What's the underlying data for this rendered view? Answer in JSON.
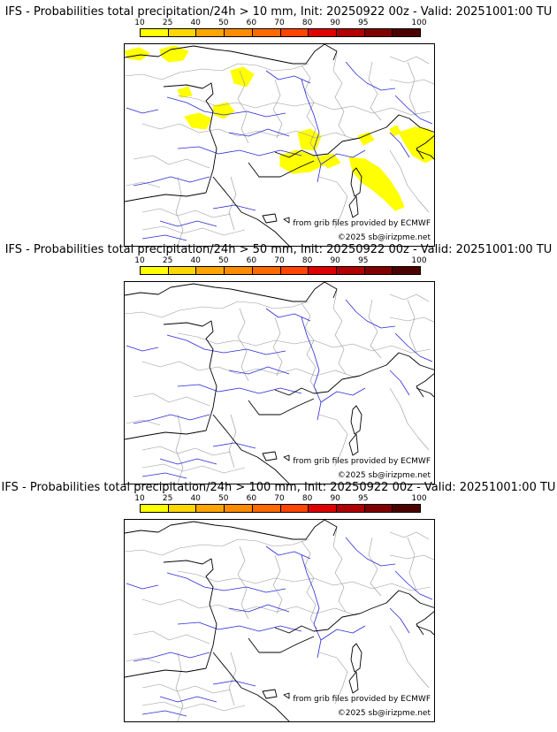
{
  "colors": {
    "scale": [
      "#ffff00",
      "#ffd700",
      "#ffa500",
      "#ff8c00",
      "#ff6a00",
      "#ff4500",
      "#e00000",
      "#b00000",
      "#800000",
      "#4d0000"
    ],
    "precip_fill": "#ffff00",
    "coast": "#000000",
    "border": "#999999",
    "river": "#2b2bd6"
  },
  "legend": {
    "levels": [
      "10",
      "25",
      "40",
      "50",
      "60",
      "70",
      "80",
      "90",
      "95",
      "100"
    ]
  },
  "panels": [
    {
      "title": "IFS - Probabilities total precipitation/24h > 10 mm, Init: 20250922 00z - Valid: 20251001:00 TU",
      "credit_source": "from grib files provided by ECMWF",
      "credit_copyright": "©2025 sb@irizpme.net",
      "has_precip": true
    },
    {
      "title": "IFS - Probabilities total precipitation/24h > 50 mm, Init: 20250922 00z - Valid: 20251001:00 TU",
      "credit_source": "from grib files provided by ECMWF",
      "credit_copyright": "©2025 sb@irizpme.net",
      "has_precip": false
    },
    {
      "title": "IFS - Probabilities total precipitation/24h > 100 mm, Init: 20250922 00z - Valid: 20251001:00 TU",
      "credit_source": "from grib files provided by ECMWF",
      "credit_copyright": "©2025 sb@irizpme.net",
      "has_precip": false
    }
  ]
}
